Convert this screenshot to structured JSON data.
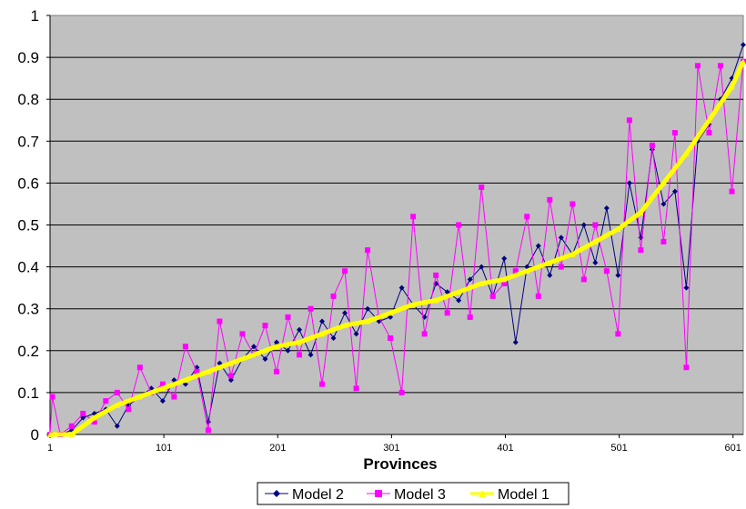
{
  "chart_data": {
    "type": "line",
    "title": "",
    "xlabel": "Provinces",
    "ylabel": "",
    "xlim": [
      1,
      610
    ],
    "ylim": [
      0,
      1
    ],
    "y_ticks": [
      "0",
      "0.1",
      "0.2",
      "0.3",
      "0.4",
      "0.5",
      "0.6",
      "0.7",
      "0.8",
      "0.9",
      "1"
    ],
    "x_ticks": [
      "1",
      "101",
      "201",
      "301",
      "401",
      "501",
      "601"
    ],
    "grid": true,
    "background_color": "#c0c0c0",
    "legend": "bottom",
    "series": [
      {
        "name": "Model 2",
        "color": "#000080",
        "marker": "diamond",
        "x": [
          1,
          10,
          20,
          30,
          40,
          50,
          60,
          70,
          80,
          90,
          100,
          110,
          120,
          130,
          140,
          150,
          160,
          170,
          180,
          190,
          200,
          210,
          220,
          230,
          240,
          250,
          260,
          270,
          280,
          290,
          300,
          310,
          320,
          330,
          340,
          350,
          360,
          370,
          380,
          390,
          400,
          410,
          420,
          430,
          440,
          450,
          460,
          470,
          480,
          490,
          500,
          510,
          520,
          530,
          540,
          550,
          560,
          570,
          580,
          590,
          600,
          610
        ],
        "values": [
          0.0,
          0.0,
          0.01,
          0.04,
          0.05,
          0.06,
          0.02,
          0.07,
          0.09,
          0.11,
          0.08,
          0.13,
          0.12,
          0.16,
          0.03,
          0.17,
          0.13,
          0.18,
          0.21,
          0.18,
          0.22,
          0.2,
          0.25,
          0.19,
          0.27,
          0.23,
          0.29,
          0.24,
          0.3,
          0.27,
          0.28,
          0.35,
          0.31,
          0.28,
          0.36,
          0.34,
          0.32,
          0.37,
          0.4,
          0.33,
          0.42,
          0.22,
          0.4,
          0.45,
          0.38,
          0.47,
          0.43,
          0.5,
          0.41,
          0.54,
          0.38,
          0.6,
          0.47,
          0.68,
          0.55,
          0.58,
          0.35,
          0.7,
          0.74,
          0.8,
          0.85,
          0.93
        ]
      },
      {
        "name": "Model 3",
        "color": "#ff00ff",
        "marker": "square",
        "x": [
          1,
          3,
          10,
          20,
          30,
          40,
          50,
          60,
          70,
          80,
          90,
          100,
          110,
          120,
          130,
          140,
          150,
          160,
          170,
          180,
          190,
          200,
          210,
          220,
          230,
          240,
          250,
          260,
          270,
          280,
          290,
          300,
          310,
          320,
          330,
          340,
          350,
          360,
          370,
          380,
          390,
          400,
          410,
          420,
          430,
          440,
          450,
          460,
          470,
          480,
          490,
          500,
          510,
          520,
          530,
          540,
          550,
          560,
          570,
          580,
          590,
          600,
          610
        ],
        "values": [
          0.0,
          0.09,
          0.0,
          0.02,
          0.05,
          0.03,
          0.08,
          0.1,
          0.06,
          0.16,
          0.1,
          0.12,
          0.09,
          0.21,
          0.15,
          0.01,
          0.27,
          0.14,
          0.24,
          0.19,
          0.26,
          0.15,
          0.28,
          0.19,
          0.3,
          0.12,
          0.33,
          0.39,
          0.11,
          0.44,
          0.28,
          0.23,
          0.1,
          0.52,
          0.24,
          0.38,
          0.29,
          0.5,
          0.28,
          0.59,
          0.33,
          0.36,
          0.39,
          0.52,
          0.33,
          0.56,
          0.4,
          0.55,
          0.37,
          0.5,
          0.39,
          0.24,
          0.75,
          0.44,
          0.69,
          0.46,
          0.72,
          0.16,
          0.88,
          0.72,
          0.88,
          0.58,
          0.89
        ]
      },
      {
        "name": "Model 1",
        "color": "#ffff00",
        "marker": "triangle",
        "x": [
          1,
          20,
          40,
          60,
          80,
          100,
          120,
          140,
          160,
          180,
          200,
          220,
          240,
          260,
          280,
          300,
          320,
          340,
          360,
          380,
          400,
          420,
          440,
          460,
          480,
          500,
          520,
          540,
          560,
          580,
          600,
          610
        ],
        "values": [
          0.0,
          0.0,
          0.04,
          0.07,
          0.09,
          0.11,
          0.13,
          0.15,
          0.17,
          0.19,
          0.21,
          0.22,
          0.24,
          0.26,
          0.27,
          0.29,
          0.31,
          0.32,
          0.34,
          0.36,
          0.37,
          0.39,
          0.41,
          0.43,
          0.46,
          0.49,
          0.53,
          0.6,
          0.67,
          0.75,
          0.83,
          0.89
        ]
      }
    ]
  }
}
